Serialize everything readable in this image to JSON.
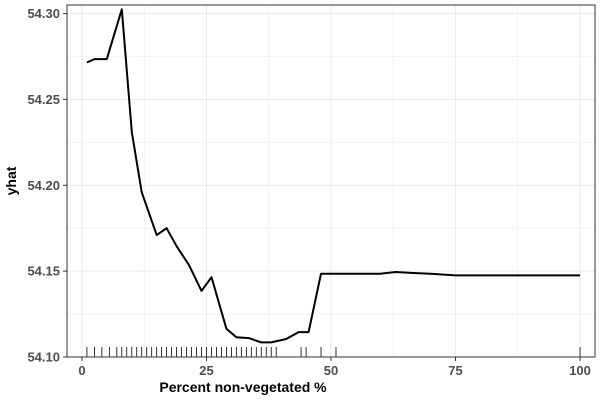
{
  "chart_data": {
    "type": "line",
    "title": "",
    "xlabel": "Percent non-vegetated %",
    "ylabel": "yhat",
    "xlim": [
      -3,
      103
    ],
    "ylim": [
      54.1,
      54.305
    ],
    "x_ticks": [
      0,
      25,
      50,
      75,
      100
    ],
    "x_tick_labels": [
      "0",
      "25",
      "50",
      "75",
      "100"
    ],
    "y_ticks": [
      54.1,
      54.15,
      54.2,
      54.25,
      54.3
    ],
    "y_tick_labels": [
      "54.10",
      "54.15",
      "54.20",
      "54.25",
      "54.30"
    ],
    "grid": true,
    "series": [
      {
        "color": "#000000",
        "x": [
          1,
          2.5,
          5,
          8,
          10,
          12,
          15,
          17,
          19,
          21.5,
          24,
          26,
          29,
          31,
          33.5,
          36,
          38,
          41,
          43.5,
          45.5,
          48,
          50,
          55,
          60,
          63,
          66,
          70,
          75,
          80,
          90,
          100
        ],
        "y": [
          54.2715,
          54.2735,
          54.2735,
          54.3025,
          54.231,
          54.196,
          54.171,
          54.175,
          54.1645,
          54.1535,
          54.1385,
          54.1465,
          54.1165,
          54.1115,
          54.111,
          54.1085,
          54.1085,
          54.1105,
          54.1145,
          54.1145,
          54.1485,
          54.1485,
          54.1485,
          54.1485,
          54.1495,
          54.149,
          54.1485,
          54.1475,
          54.1475,
          54.1475,
          54.1475
        ]
      }
    ],
    "rug_x": [
      1,
      2.5,
      4,
      5.5,
      7,
      8,
      9,
      10,
      11,
      12,
      13,
      14,
      15,
      16,
      17,
      18,
      19,
      20,
      21,
      22,
      23,
      24,
      25,
      26,
      27,
      28,
      29,
      30,
      31,
      32,
      33,
      34,
      35,
      36,
      37,
      38,
      39,
      44,
      45,
      48,
      51,
      100
    ],
    "colors": {
      "line": "#000000",
      "grid": "#ebebeb",
      "border": "#333333",
      "rug": "#000000"
    }
  }
}
